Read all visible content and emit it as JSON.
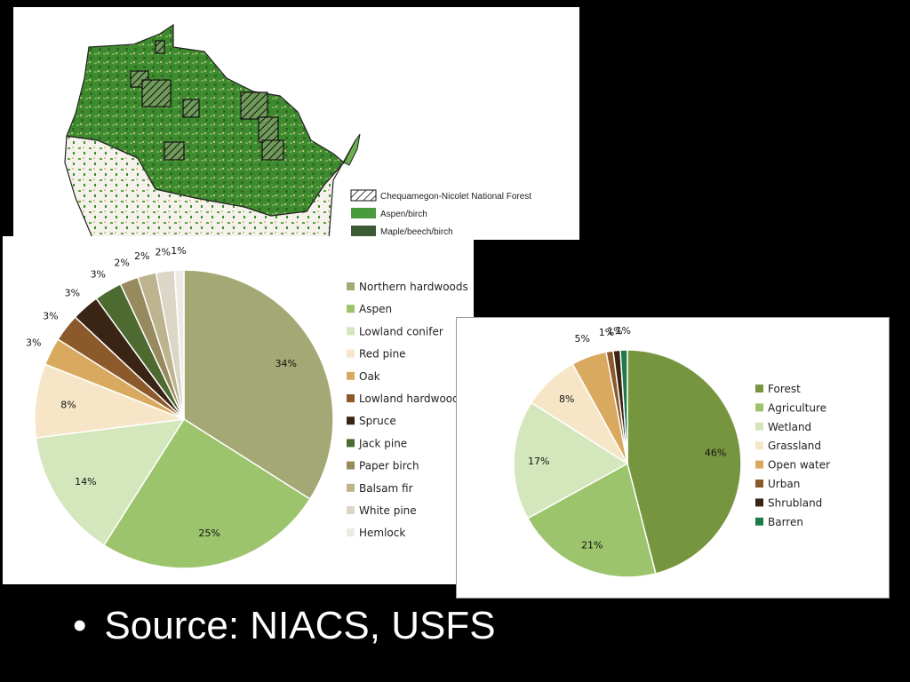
{
  "map": {
    "legend": [
      {
        "label": "Chequamegon-Nicolet National Forest",
        "swatch": "hatch"
      },
      {
        "label": "Aspen/birch",
        "swatch": "#4a9a3e"
      },
      {
        "label": "Maple/beech/birch",
        "swatch": "#3d5a36"
      }
    ]
  },
  "chart_data": [
    {
      "type": "pie",
      "legend_placement": "right",
      "categories": [
        "Northern hardwoods",
        "Aspen",
        "Lowland conifer",
        "Red pine",
        "Oak",
        "Lowland hardwoods",
        "Spruce",
        "Jack pine",
        "Paper birch",
        "Balsam fir",
        "White pine",
        "Hemlock"
      ],
      "values": [
        34,
        25,
        14,
        8,
        3,
        3,
        3,
        3,
        2,
        2,
        2,
        1
      ],
      "labels": [
        "34%",
        "25%",
        "14%",
        "8%",
        "3%",
        "3%",
        "3%",
        "3%",
        "2%",
        "2%",
        "2%",
        "1%"
      ],
      "colors": [
        "#a4a874",
        "#9cc46c",
        "#d3e6bc",
        "#f6e6c7",
        "#d9a960",
        "#8c5a2a",
        "#3a2414",
        "#4d6a30",
        "#978a5f",
        "#bdb38f",
        "#dcd6c6",
        "#ecebe3"
      ]
    },
    {
      "type": "pie",
      "legend_placement": "right",
      "categories": [
        "Forest",
        "Agriculture",
        "Wetland",
        "Grassland",
        "Open water",
        "Urban",
        "Shrubland",
        "Barren"
      ],
      "values": [
        46,
        21,
        17,
        8,
        5,
        1,
        1,
        1
      ],
      "labels": [
        "46%",
        "21%",
        "17%",
        "8%",
        "5%",
        "1%",
        "1%",
        "1%"
      ],
      "colors": [
        "#76953f",
        "#9cc46c",
        "#d3e6bc",
        "#f6e6c7",
        "#d9a960",
        "#8c5a2a",
        "#3a2414",
        "#1f7a4a"
      ]
    }
  ],
  "footer": {
    "source_text": "Source: NIACS, USFS"
  }
}
